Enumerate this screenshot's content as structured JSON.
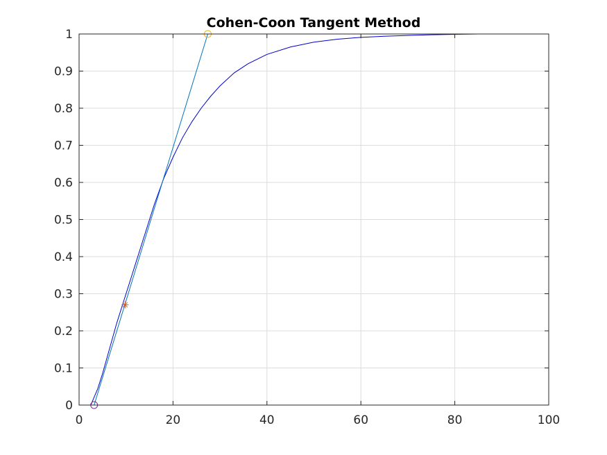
{
  "chart_data": {
    "type": "line",
    "title": "Cohen-Coon Tangent Method",
    "xlabel": "",
    "ylabel": "",
    "xlim": [
      0,
      100
    ],
    "ylim": [
      0,
      1
    ],
    "xticks": [
      "0",
      "20",
      "40",
      "60",
      "80",
      "100"
    ],
    "yticks": [
      "0",
      "0.1",
      "0.2",
      "0.3",
      "0.4",
      "0.5",
      "0.6",
      "0.7",
      "0.8",
      "0.9",
      "1"
    ],
    "grid": true,
    "series": [
      {
        "kind": "line",
        "color": "#0000cc",
        "x": [
          2.5,
          3,
          4,
          5,
          6,
          7,
          8,
          9,
          10,
          12,
          14,
          16,
          18,
          20,
          22,
          24,
          26,
          28,
          30,
          33,
          36,
          40,
          45,
          50,
          55,
          60,
          65,
          70,
          75,
          80,
          85
        ],
        "y": [
          0.0,
          0.015,
          0.045,
          0.085,
          0.13,
          0.175,
          0.22,
          0.26,
          0.3,
          0.38,
          0.46,
          0.54,
          0.61,
          0.668,
          0.72,
          0.763,
          0.8,
          0.832,
          0.86,
          0.895,
          0.92,
          0.945,
          0.965,
          0.978,
          0.986,
          0.991,
          0.994,
          0.996,
          0.998,
          0.999,
          1.0
        ]
      },
      {
        "kind": "line",
        "color": "#0072bd",
        "x": [
          3.2,
          27.4
        ],
        "y": [
          0,
          1
        ]
      },
      {
        "kind": "line",
        "color": "#20b2aa",
        "x": [
          0,
          90
        ],
        "y": [
          0,
          0
        ]
      },
      {
        "kind": "line",
        "color": "#20b2aa",
        "x": [
          0,
          90
        ],
        "y": [
          1,
          1
        ]
      }
    ],
    "markers": [
      {
        "x": 3.2,
        "y": 0,
        "shape": "circle",
        "color": "#7e2f8e"
      },
      {
        "x": 27.4,
        "y": 1,
        "shape": "circle",
        "color": "#edb120"
      },
      {
        "x": 9.8,
        "y": 0.27,
        "shape": "asterisk",
        "color": "#d95319"
      }
    ]
  }
}
